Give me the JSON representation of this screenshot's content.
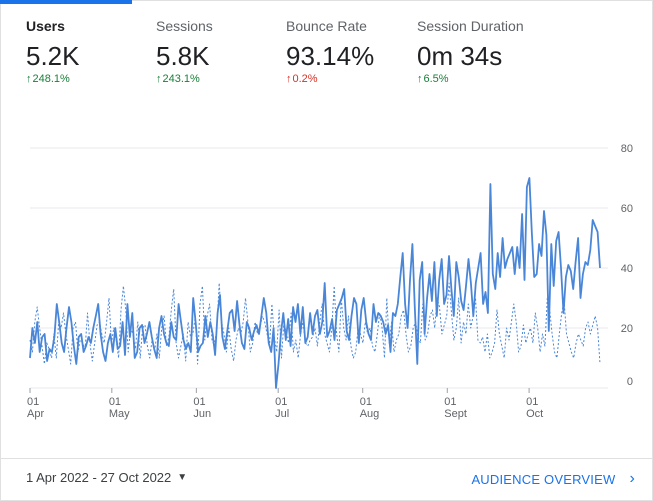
{
  "metrics": [
    {
      "label": "Users",
      "value": "5.2K",
      "change": "248.1%",
      "direction": "up"
    },
    {
      "label": "Sessions",
      "value": "5.8K",
      "change": "243.1%",
      "direction": "up"
    },
    {
      "label": "Bounce Rate",
      "value": "93.14%",
      "change": "0.2%",
      "direction": "up-bad"
    },
    {
      "label": "Session Duration",
      "value": "0m 34s",
      "change": "6.5%",
      "direction": "up"
    }
  ],
  "footer": {
    "date_range": "1 Apr 2022 - 27 Oct 2022",
    "audience_link": "AUDIENCE OVERVIEW"
  },
  "colors": {
    "accent": "#1a73e8",
    "line": "#4a86d8",
    "positive": "#188038",
    "negative": "#d93025"
  },
  "icons": {
    "dropdown": "caret-down-icon",
    "link": "chevron-right-icon",
    "change": "arrow-up-icon"
  },
  "chart_data": {
    "type": "line",
    "title": "",
    "xlabel": "",
    "ylabel": "",
    "ylim": [
      0,
      80
    ],
    "yticks": [
      0,
      20,
      40,
      60,
      80
    ],
    "x_start": "2022-04-01",
    "x_end": "2022-10-27",
    "month_ticks": [
      {
        "day": "01",
        "month": "Apr",
        "date": "2022-04-01"
      },
      {
        "day": "01",
        "month": "May",
        "date": "2022-05-01"
      },
      {
        "day": "01",
        "month": "Jun",
        "date": "2022-06-01"
      },
      {
        "day": "01",
        "month": "Jul",
        "date": "2022-07-01"
      },
      {
        "day": "01",
        "month": "Aug",
        "date": "2022-08-01"
      },
      {
        "day": "01",
        "month": "Sept",
        "date": "2022-09-01"
      },
      {
        "day": "01",
        "month": "Oct",
        "date": "2022-10-01"
      }
    ],
    "grid": true,
    "series": [
      {
        "style": "solid",
        "values": [
          10,
          20,
          15,
          22,
          12,
          17,
          18,
          9,
          13,
          12,
          17,
          28,
          22,
          15,
          12,
          20,
          27,
          22,
          14,
          8,
          17,
          18,
          12,
          14,
          17,
          15,
          20,
          24,
          28,
          18,
          12,
          9,
          15,
          18,
          12,
          20,
          13,
          14,
          22,
          11,
          28,
          17,
          25,
          10,
          12,
          20,
          21,
          15,
          18,
          22,
          17,
          13,
          10,
          20,
          24,
          18,
          15,
          14,
          22,
          17,
          16,
          28,
          22,
          16,
          13,
          15,
          12,
          30,
          22,
          12,
          14,
          15,
          24,
          17,
          22,
          18,
          11,
          25,
          31,
          17,
          13,
          19,
          25,
          26,
          19,
          29,
          21,
          15,
          13,
          22,
          20,
          16,
          19,
          21,
          18,
          24,
          30,
          25,
          15,
          12,
          20,
          0,
          8,
          18,
          25,
          16,
          23,
          14,
          27,
          22,
          28,
          18,
          27,
          15,
          17,
          25,
          18,
          24,
          26,
          18,
          22,
          35,
          17,
          19,
          23,
          16,
          26,
          28,
          30,
          33,
          19,
          16,
          24,
          30,
          28,
          15,
          26,
          30,
          22,
          18,
          16,
          28,
          22,
          25,
          24,
          22,
          18,
          21,
          12,
          25,
          24,
          28,
          37,
          45,
          28,
          20,
          36,
          48,
          26,
          8,
          36,
          42,
          18,
          30,
          38,
          29,
          42,
          24,
          36,
          43,
          28,
          31,
          44,
          33,
          24,
          42,
          37,
          29,
          26,
          34,
          43,
          35,
          24,
          35,
          40,
          45,
          28,
          32,
          25,
          68,
          38,
          33,
          45,
          37,
          50,
          40,
          43,
          45,
          47,
          38,
          47,
          40,
          58,
          36,
          67,
          70,
          52,
          37,
          38,
          48,
          44,
          59,
          51,
          19,
          48,
          34,
          49,
          52,
          40,
          25,
          37,
          41,
          39,
          33,
          42,
          50,
          30,
          38,
          42,
          41,
          46,
          56,
          54,
          52,
          40
        ]
      },
      {
        "style": "dashed",
        "values": [
          16,
          12,
          22,
          27,
          20,
          14,
          8,
          15,
          13,
          10,
          18,
          10,
          22,
          20,
          25,
          18,
          13,
          8,
          20,
          22,
          12,
          16,
          15,
          13,
          25,
          15,
          9,
          15,
          21,
          22,
          18,
          15,
          22,
          30,
          15,
          20,
          16,
          10,
          26,
          34,
          26,
          12,
          20,
          18,
          13,
          22,
          10,
          20,
          21,
          14,
          10,
          16,
          12,
          18,
          10,
          20,
          24,
          14,
          17,
          26,
          33,
          15,
          10,
          14,
          18,
          9,
          22,
          17,
          18,
          24,
          8,
          28,
          34,
          16,
          24,
          28,
          16,
          14,
          20,
          35,
          22,
          18,
          12,
          20,
          13,
          9,
          16,
          20,
          18,
          22,
          30,
          22,
          12,
          15,
          22,
          18,
          20,
          24,
          22,
          18,
          14,
          28,
          17,
          12,
          26,
          10,
          22,
          18,
          15,
          25,
          12,
          16,
          10,
          18,
          22,
          15,
          14,
          16,
          17,
          20,
          14,
          22,
          28,
          18,
          15,
          12,
          20,
          34,
          18,
          12,
          30,
          20,
          16,
          24,
          14,
          10,
          12,
          20,
          18,
          15,
          22,
          18,
          20,
          14,
          12,
          18,
          25,
          20,
          10,
          30,
          15,
          22,
          12,
          16,
          18,
          24,
          26,
          18,
          12,
          14,
          20,
          22,
          17,
          15,
          28,
          16,
          18,
          24,
          26,
          20,
          30,
          27,
          18,
          21,
          24,
          35,
          25,
          16,
          20,
          30,
          15,
          22,
          18,
          28,
          20,
          24,
          30,
          16,
          15,
          17,
          12,
          18,
          10,
          12,
          15,
          26,
          18,
          14,
          10,
          20,
          16,
          22,
          28,
          22,
          12,
          14,
          21,
          15,
          18,
          20,
          15,
          25,
          20,
          12,
          18,
          14,
          30,
          26,
          18,
          12,
          10,
          18,
          25,
          29,
          18,
          15,
          12,
          10,
          15,
          18,
          16,
          14,
          20,
          22,
          18,
          21,
          24,
          20,
          8
        ]
      }
    ]
  }
}
